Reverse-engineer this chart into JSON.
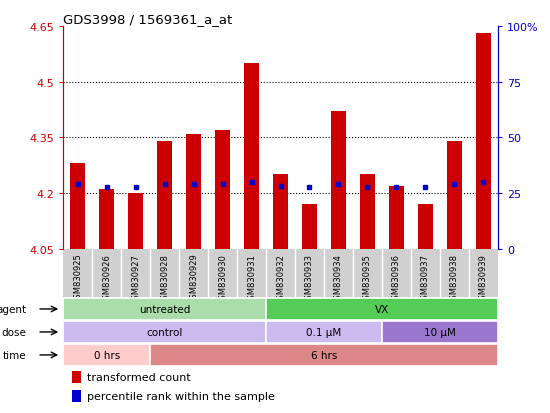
{
  "title": "GDS3998 / 1569361_a_at",
  "samples": [
    "GSM830925",
    "GSM830926",
    "GSM830927",
    "GSM830928",
    "GSM830929",
    "GSM830930",
    "GSM830931",
    "GSM830932",
    "GSM830933",
    "GSM830934",
    "GSM830935",
    "GSM830936",
    "GSM830937",
    "GSM830938",
    "GSM830939"
  ],
  "bar_values": [
    4.28,
    4.21,
    4.2,
    4.34,
    4.36,
    4.37,
    4.55,
    4.25,
    4.17,
    4.42,
    4.25,
    4.22,
    4.17,
    4.34,
    4.63
  ],
  "dot_values": [
    4.225,
    4.215,
    4.215,
    4.225,
    4.225,
    4.225,
    4.23,
    4.22,
    4.215,
    4.225,
    4.215,
    4.215,
    4.215,
    4.225,
    4.23
  ],
  "ymin": 4.05,
  "ymax": 4.65,
  "yticks": [
    4.05,
    4.2,
    4.35,
    4.5,
    4.65
  ],
  "ytick_labels": [
    "4.05",
    "4.2",
    "4.35",
    "4.5",
    "4.65"
  ],
  "right_ytick_percents": [
    0,
    25,
    50,
    75,
    100
  ],
  "right_ytick_labels": [
    "0",
    "25",
    "50",
    "75",
    "100%"
  ],
  "bar_color": "#cc0000",
  "dot_color": "#0000cc",
  "plot_bg": "#ffffff",
  "xtick_bg": "#d0d0d0",
  "agent_row": {
    "label": "agent",
    "groups": [
      {
        "text": "untreated",
        "color": "#aaddaa",
        "start": 0,
        "end": 7
      },
      {
        "text": "VX",
        "color": "#55cc55",
        "start": 7,
        "end": 15
      }
    ]
  },
  "dose_row": {
    "label": "dose",
    "groups": [
      {
        "text": "control",
        "color": "#ccbbee",
        "start": 0,
        "end": 7
      },
      {
        "text": "0.1 μM",
        "color": "#ccbbee",
        "start": 7,
        "end": 11
      },
      {
        "text": "10 μM",
        "color": "#9977cc",
        "start": 11,
        "end": 15
      }
    ]
  },
  "time_row": {
    "label": "time",
    "groups": [
      {
        "text": "0 hrs",
        "color": "#ffcccc",
        "start": 0,
        "end": 3
      },
      {
        "text": "6 hrs",
        "color": "#dd8888",
        "start": 3,
        "end": 15
      }
    ]
  },
  "legend": [
    {
      "color": "#cc0000",
      "label": "transformed count"
    },
    {
      "color": "#0000cc",
      "label": "percentile rank within the sample"
    }
  ]
}
